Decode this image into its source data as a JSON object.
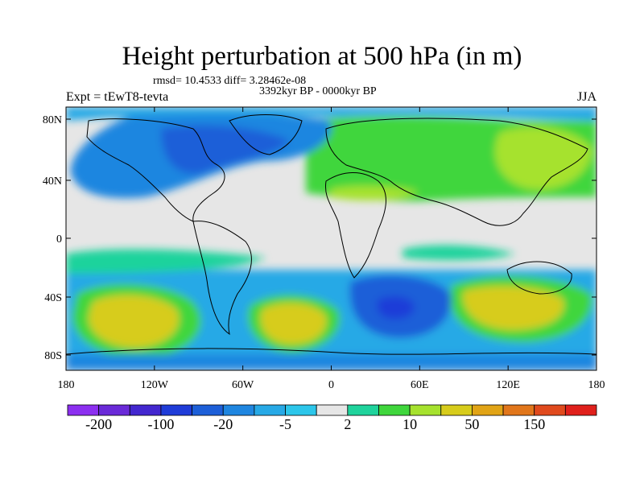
{
  "title": "Height perturbation at 500 hPa (in m)",
  "stats_line": "rmsd= 10.4533 diff= 3.28462e-08",
  "period": "3392kyr BP - 0000kyr BP",
  "experiment": "Expt = tEwT8-tevta",
  "season": "JJA",
  "colors": {
    "land_outline": "#000000",
    "ocean_neutral": "#e6e6e6"
  },
  "map": {
    "lon_ticks": [
      "180",
      "120W",
      "60W",
      "0",
      "60E",
      "120E",
      "180"
    ],
    "lat_ticks": [
      "80N",
      "40N",
      "0",
      "40S",
      "80S"
    ]
  },
  "colorbar": {
    "colors": [
      "#8c2ff0",
      "#6a2ad8",
      "#4327cf",
      "#1f3cd8",
      "#1d5fd8",
      "#1f86e0",
      "#27a9e6",
      "#2cc6ea",
      "#e6e6e6",
      "#1fd39c",
      "#3fd63c",
      "#a6e22e",
      "#d7cc1b",
      "#e1a416",
      "#e1761b",
      "#e04a1d",
      "#e0201c"
    ],
    "labels": [
      "-200",
      "-100",
      "-20",
      "-5",
      "2",
      "10",
      "50",
      "150"
    ]
  }
}
